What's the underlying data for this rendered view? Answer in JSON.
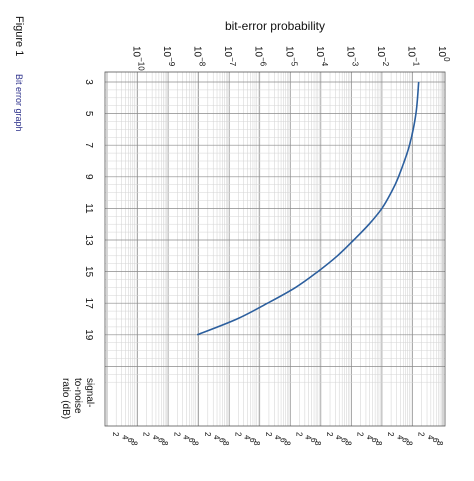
{
  "figure": {
    "label": "Figure 1",
    "caption": "Bit error graph"
  },
  "chart_data": {
    "type": "line",
    "orientation": "rotated 90° clockwise",
    "xlabel": "signal-to-noise ratio (dB)",
    "ylabel": "bit-error probability",
    "xlabel_lines": [
      "signal-",
      "to-noise",
      "ratio (dB)"
    ],
    "ylabel_scale": "log",
    "xlim": [
      3,
      22
    ],
    "ylim_exponent": [
      -11,
      0
    ],
    "x_ticks": [
      "3",
      "5",
      "7",
      "9",
      "11",
      "13",
      "15",
      "17",
      "19"
    ],
    "y_ticks": [
      {
        "base": "10",
        "exp": "−10"
      },
      {
        "base": "10",
        "exp": "−9"
      },
      {
        "base": "10",
        "exp": "−8"
      },
      {
        "base": "10",
        "exp": "−7"
      },
      {
        "base": "10",
        "exp": "−6"
      },
      {
        "base": "10",
        "exp": "−5"
      },
      {
        "base": "10",
        "exp": "−4"
      },
      {
        "base": "10",
        "exp": "−3"
      },
      {
        "base": "10",
        "exp": "−2"
      },
      {
        "base": "10",
        "exp": "−1"
      },
      {
        "base": "10",
        "exp": "0"
      }
    ],
    "minor_labels": [
      "2",
      "4",
      "6",
      "8"
    ],
    "grid": true,
    "series": [
      {
        "color": "#2c5f9e",
        "x": [
          3,
          5,
          7,
          9,
          10,
          11,
          12,
          13,
          14,
          15,
          16,
          17,
          18,
          19
        ],
        "y": [
          0.16,
          0.13,
          0.08,
          0.035,
          0.02,
          0.01,
          0.0038,
          0.0012,
          0.00035,
          8e-05,
          1.5e-05,
          1.8e-06,
          1.8e-07,
          9e-09
        ]
      }
    ]
  }
}
